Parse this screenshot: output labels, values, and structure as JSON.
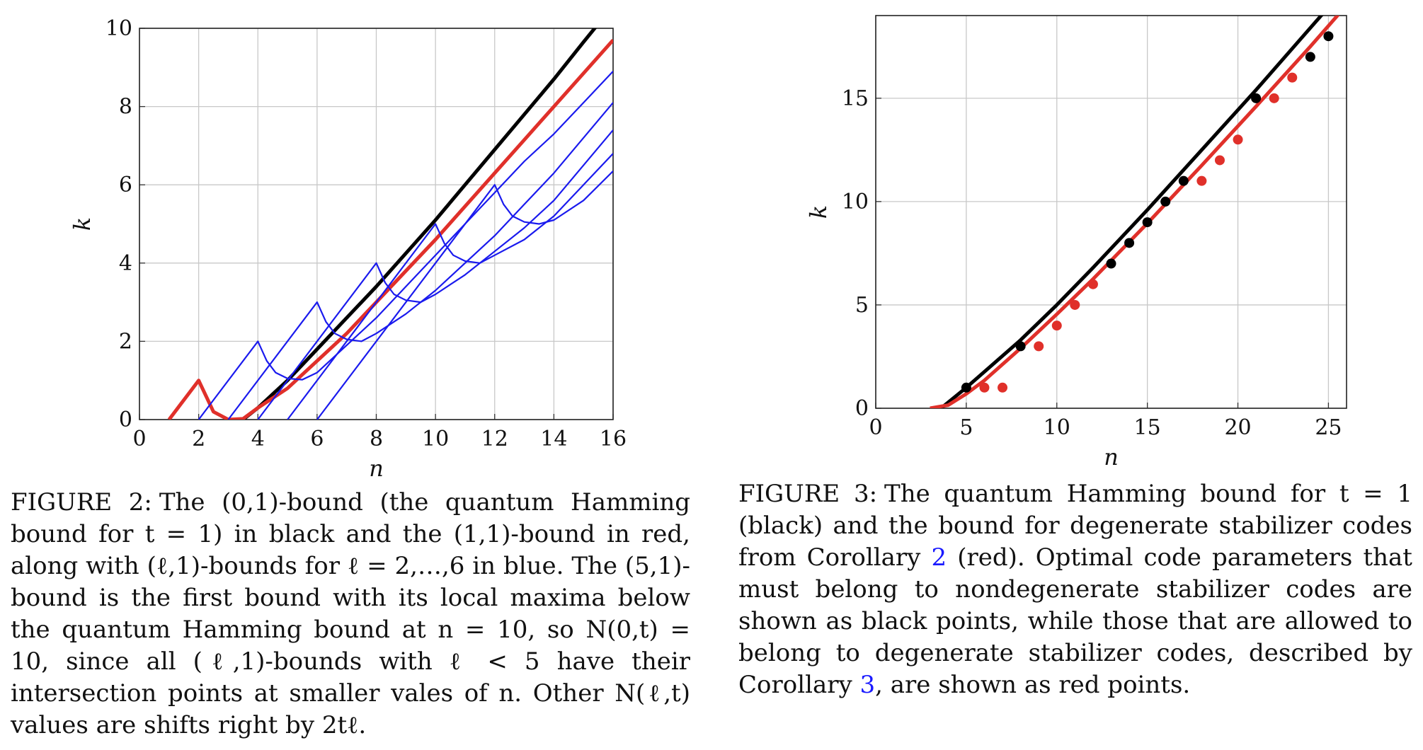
{
  "figure2": {
    "label": "FIGURE 2:",
    "caption": "The (0,1)-bound (the quantum Hamming bound for t = 1) in black and the (1,1)-bound in red, along with (ℓ,1)-bounds for ℓ = 2,…,6 in blue. The (5,1)-bound is the first bound with its local maxima below the quantum Hamming bound at n = 10, so N(0,t) = 10, since all (ℓ,1)-bounds with ℓ < 5 have their intersection points at smaller vales of n. Other N(ℓ,t) values are shifts right by 2tℓ.",
    "chart_data": {
      "type": "line",
      "xlabel": "n",
      "ylabel": "k",
      "xlim": [
        0,
        16
      ],
      "ylim": [
        0,
        10
      ],
      "xticks": [
        "0",
        "2",
        "4",
        "6",
        "8",
        "10",
        "12",
        "14",
        "16"
      ],
      "yticks": [
        "0",
        "2",
        "4",
        "6",
        "8",
        "10"
      ],
      "grid": true,
      "series": [
        {
          "color": "#000000",
          "points": [
            [
              3.5,
              0
            ],
            [
              4,
              0.3
            ],
            [
              5,
              1
            ],
            [
              6,
              1.8
            ],
            [
              7,
              2.6
            ],
            [
              8,
              3.4
            ],
            [
              9,
              4.25
            ],
            [
              10,
              5.1
            ],
            [
              11,
              6.0
            ],
            [
              12,
              6.9
            ],
            [
              13,
              7.8
            ],
            [
              14,
              8.7
            ],
            [
              15,
              9.65
            ],
            [
              15.7,
              10.3
            ]
          ]
        },
        {
          "color": "#e0302a",
          "points": [
            [
              1,
              0
            ],
            [
              2,
              1
            ],
            [
              2.5,
              0.2
            ],
            [
              3,
              0
            ],
            [
              3.5,
              0.02
            ],
            [
              4,
              0.3
            ],
            [
              5,
              0.8
            ],
            [
              6,
              1.5
            ],
            [
              7,
              2.2
            ],
            [
              8,
              3.0
            ],
            [
              9,
              3.8
            ],
            [
              10,
              4.6
            ],
            [
              11,
              5.45
            ],
            [
              12,
              6.3
            ],
            [
              13,
              7.15
            ],
            [
              14,
              8.0
            ],
            [
              15,
              8.85
            ],
            [
              16,
              9.7
            ]
          ]
        },
        {
          "color": "#1a1aee",
          "points": [
            [
              2,
              0
            ],
            [
              4,
              2
            ],
            [
              4.3,
              1.5
            ],
            [
              4.6,
              1.2
            ],
            [
              5,
              1.05
            ],
            [
              5.5,
              1.02
            ],
            [
              6,
              1.2
            ],
            [
              7,
              1.9
            ],
            [
              8,
              2.6
            ],
            [
              9,
              3.4
            ],
            [
              10,
              4.2
            ],
            [
              11,
              5.0
            ],
            [
              12,
              5.8
            ],
            [
              13,
              6.6
            ],
            [
              14,
              7.3
            ],
            [
              15,
              8.1
            ],
            [
              16,
              8.9
            ]
          ]
        },
        {
          "color": "#1a1aee",
          "points": [
            [
              3,
              0
            ],
            [
              6,
              3
            ],
            [
              6.3,
              2.5
            ],
            [
              6.6,
              2.2
            ],
            [
              7,
              2.05
            ],
            [
              7.5,
              2.0
            ],
            [
              8,
              2.2
            ],
            [
              9,
              2.7
            ],
            [
              10,
              3.3
            ],
            [
              11,
              4.0
            ],
            [
              12,
              4.7
            ],
            [
              13,
              5.5
            ],
            [
              14,
              6.3
            ],
            [
              15,
              7.2
            ],
            [
              16,
              8.1
            ]
          ]
        },
        {
          "color": "#1a1aee",
          "points": [
            [
              4,
              0
            ],
            [
              8,
              4
            ],
            [
              8.3,
              3.5
            ],
            [
              8.6,
              3.2
            ],
            [
              9,
              3.05
            ],
            [
              9.5,
              3.0
            ],
            [
              10,
              3.2
            ],
            [
              11,
              3.7
            ],
            [
              12,
              4.3
            ],
            [
              13,
              4.9
            ],
            [
              14,
              5.6
            ],
            [
              15,
              6.5
            ],
            [
              16,
              7.4
            ]
          ]
        },
        {
          "color": "#1a1aee",
          "points": [
            [
              5,
              0
            ],
            [
              10,
              5
            ],
            [
              10.3,
              4.5
            ],
            [
              10.6,
              4.2
            ],
            [
              11,
              4.05
            ],
            [
              11.5,
              4.0
            ],
            [
              12,
              4.2
            ],
            [
              13,
              4.6
            ],
            [
              14,
              5.2
            ],
            [
              15,
              6.0
            ],
            [
              16,
              6.8
            ]
          ]
        },
        {
          "color": "#1a1aee",
          "points": [
            [
              6,
              0
            ],
            [
              12,
              6
            ],
            [
              12.3,
              5.5
            ],
            [
              12.6,
              5.2
            ],
            [
              13,
              5.05
            ],
            [
              13.5,
              5.0
            ],
            [
              14,
              5.1
            ],
            [
              15,
              5.6
            ],
            [
              16,
              6.35
            ]
          ]
        }
      ]
    }
  },
  "figure3": {
    "label": "FIGURE 3:",
    "caption_before": "The quantum Hamming bound for t = 1 (black) and the bound for degenerate stabilizer codes from Corollary",
    "ref1": "2",
    "caption_middle": "(red). Optimal code parameters that must belong to nondegenerate stabilizer codes are shown as black points, while those that are allowed to belong to degenerate stabilizer codes, described by Corollary",
    "ref2": "3",
    "caption_after": ", are shown as red points.",
    "chart_data": {
      "type": "scatter",
      "xlabel": "n",
      "ylabel": "k",
      "xlim": [
        0,
        26
      ],
      "ylim": [
        0,
        19
      ],
      "xticks": [
        "0",
        "5",
        "10",
        "15",
        "20",
        "25"
      ],
      "yticks": [
        "0",
        "5",
        "10",
        "15"
      ],
      "grid": true,
      "series": [
        {
          "color": "#000000",
          "kind": "line",
          "points": [
            [
              3.6,
              0
            ],
            [
              5,
              1.0
            ],
            [
              8,
              3.3
            ],
            [
              10,
              5.0
            ],
            [
              12,
              6.8
            ],
            [
              15,
              9.6
            ],
            [
              18,
              12.5
            ],
            [
              21,
              15.4
            ],
            [
              24,
              18.4
            ],
            [
              25.2,
              19.6
            ]
          ]
        },
        {
          "color": "#e0302a",
          "kind": "line",
          "points": [
            [
              3,
              0
            ],
            [
              4,
              0.15
            ],
            [
              5,
              0.7
            ],
            [
              6,
              1.35
            ],
            [
              8,
              2.9
            ],
            [
              10,
              4.55
            ],
            [
              12,
              6.25
            ],
            [
              15,
              8.95
            ],
            [
              18,
              11.75
            ],
            [
              21,
              14.6
            ],
            [
              24,
              17.5
            ],
            [
              26,
              19.5
            ]
          ]
        },
        {
          "color": "#000000",
          "kind": "points",
          "points": [
            [
              5,
              1
            ],
            [
              8,
              3
            ],
            [
              13,
              7
            ],
            [
              14,
              8
            ],
            [
              15,
              9
            ],
            [
              16,
              10
            ],
            [
              17,
              11
            ],
            [
              21,
              15
            ],
            [
              24,
              17
            ],
            [
              25,
              18
            ]
          ]
        },
        {
          "color": "#e0302a",
          "kind": "points",
          "points": [
            [
              6,
              1
            ],
            [
              7,
              1
            ],
            [
              9,
              3
            ],
            [
              10,
              4
            ],
            [
              11,
              5
            ],
            [
              12,
              6
            ],
            [
              18,
              11
            ],
            [
              19,
              12
            ],
            [
              20,
              13
            ],
            [
              22,
              15
            ],
            [
              23,
              16
            ]
          ]
        }
      ]
    }
  }
}
